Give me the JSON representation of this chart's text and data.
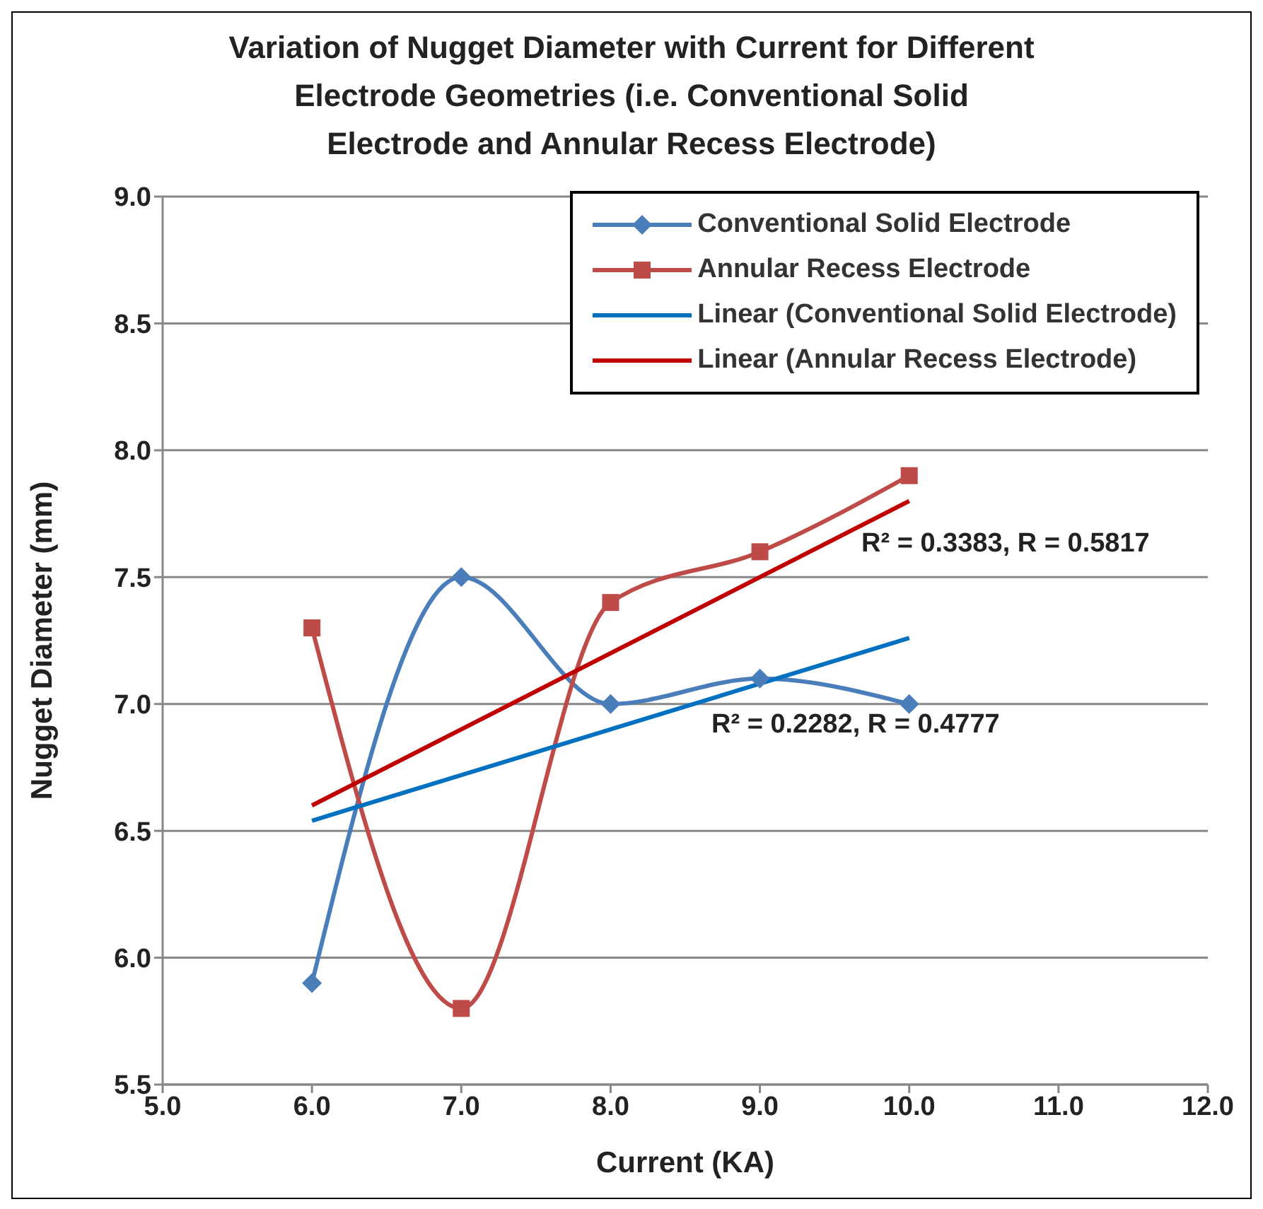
{
  "chart_data": {
    "type": "line",
    "title": "Variation of Nugget Diameter with  Current  for Different Electrode Geometries (i.e. Conventional Solid Electrode and Annular Recess Electrode)",
    "xlabel": "Current (KA)",
    "ylabel": "Nugget Diameter (mm)",
    "xlim": [
      5,
      12
    ],
    "xticks": [
      {
        "value": 5,
        "label": "5.0"
      },
      {
        "value": 6,
        "label": "6.0"
      },
      {
        "value": 7,
        "label": "7.0"
      },
      {
        "value": 8,
        "label": "8.0"
      },
      {
        "value": 9,
        "label": "9.0"
      },
      {
        "value": 10,
        "label": "10.0"
      },
      {
        "value": 11,
        "label": "11.0"
      },
      {
        "value": 12,
        "label": "12.0"
      }
    ],
    "ylim": [
      5.5,
      9
    ],
    "yticks": [
      {
        "value": 5.5,
        "label": "5.5"
      },
      {
        "value": 6,
        "label": "6.0"
      },
      {
        "value": 6.5,
        "label": "6.5"
      },
      {
        "value": 7,
        "label": "7.0"
      },
      {
        "value": 7.5,
        "label": "7.5"
      },
      {
        "value": 8,
        "label": "8.0"
      },
      {
        "value": 8.5,
        "label": "8.5"
      },
      {
        "value": 9,
        "label": "9.0"
      }
    ],
    "grid": "y",
    "legend": "top right",
    "series": [
      {
        "name": "Conventional Solid Electrode",
        "color": "#4a7ebb",
        "marker": "diamond",
        "x": [
          6,
          7,
          8,
          9,
          10
        ],
        "values": [
          5.9,
          7.5,
          7.0,
          7.1,
          7.0
        ]
      },
      {
        "name": "Annular Recess Electrode",
        "color": "#be4b48",
        "marker": "square",
        "x": [
          6,
          7,
          8,
          9,
          10
        ],
        "values": [
          7.3,
          5.8,
          7.4,
          7.6,
          7.9
        ]
      },
      {
        "name": "Linear (Conventional Solid Electrode)",
        "color": "#0070c0",
        "marker": "none",
        "x": [
          6,
          10
        ],
        "values": [
          6.54,
          7.26
        ]
      },
      {
        "name": "Linear (Annular Recess Electrode)",
        "color": "#c00000",
        "marker": "none",
        "x": [
          6,
          10
        ],
        "values": [
          6.6,
          7.8
        ]
      }
    ],
    "annotations": [
      "R² = 0.3383, R = 0.5817",
      "R² = 0.2282, R = 0.4777"
    ]
  }
}
